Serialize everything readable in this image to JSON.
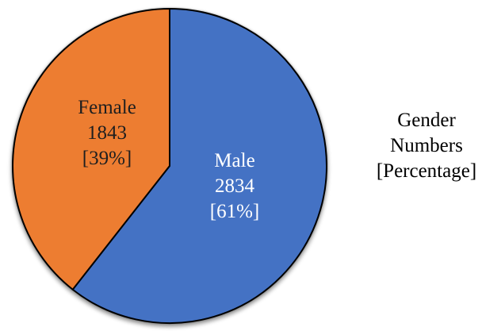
{
  "chart_data": {
    "type": "pie",
    "title": "Gender Numbers [Percentage]",
    "categories": [
      "Male",
      "Female"
    ],
    "values": [
      2834,
      1843
    ],
    "slices": [
      {
        "label": "Male",
        "value": 2834,
        "percent": 61,
        "display_percent": "[61%]",
        "color": "#4472C4",
        "text_color": "#FFFFFF"
      },
      {
        "label": "Female",
        "value": 1843,
        "percent": 39,
        "display_percent": "[39%]",
        "color": "#ED7D31",
        "text_color": "#1F1F1F"
      }
    ],
    "start_angle_deg": 0,
    "direction": "clockwise",
    "outline_color": "#000000",
    "background_color": "#FFFFFF",
    "legend_position": "none",
    "data_labels": "category, value, [percent] inside slices"
  },
  "side_text": {
    "lines": [
      "Gender",
      "Numbers",
      "[Percentage]"
    ]
  }
}
